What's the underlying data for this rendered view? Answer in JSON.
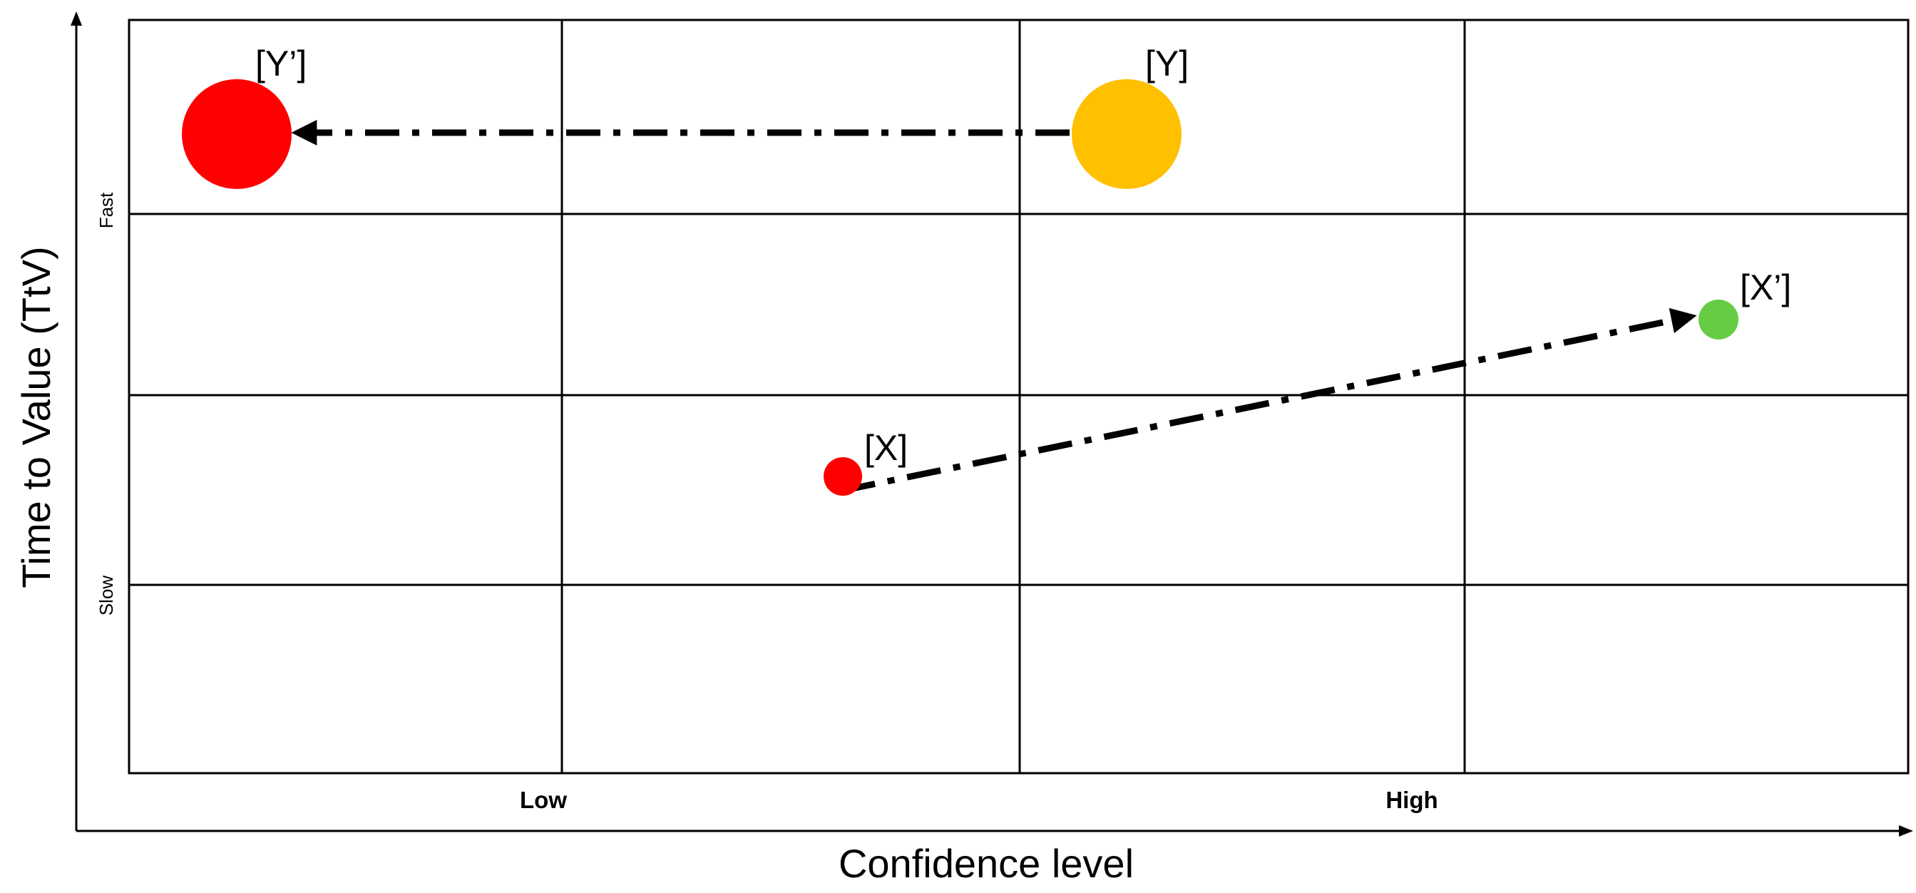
{
  "axes": {
    "x_title": "Confidence level",
    "y_title": "Time to Value (TtV)",
    "x_ticks": [
      "Low",
      "High"
    ],
    "y_ticks": [
      "Fast",
      "Slow"
    ]
  },
  "grid": {
    "columns": 4,
    "rows": 4
  },
  "points": [
    {
      "id": "y_prime",
      "label": "[Y’]",
      "color": "#ff0000"
    },
    {
      "id": "y",
      "label": "[Y]",
      "color": "#ffc000"
    },
    {
      "id": "x",
      "label": "[X]",
      "color": "#ff0000"
    },
    {
      "id": "x_prime",
      "label": "[X’]",
      "color": "#66cc44"
    }
  ],
  "transitions": [
    {
      "from": "Y",
      "to": "Y’",
      "style": "dash-dot"
    },
    {
      "from": "X",
      "to": "X’",
      "style": "dash-dot"
    }
  ]
}
